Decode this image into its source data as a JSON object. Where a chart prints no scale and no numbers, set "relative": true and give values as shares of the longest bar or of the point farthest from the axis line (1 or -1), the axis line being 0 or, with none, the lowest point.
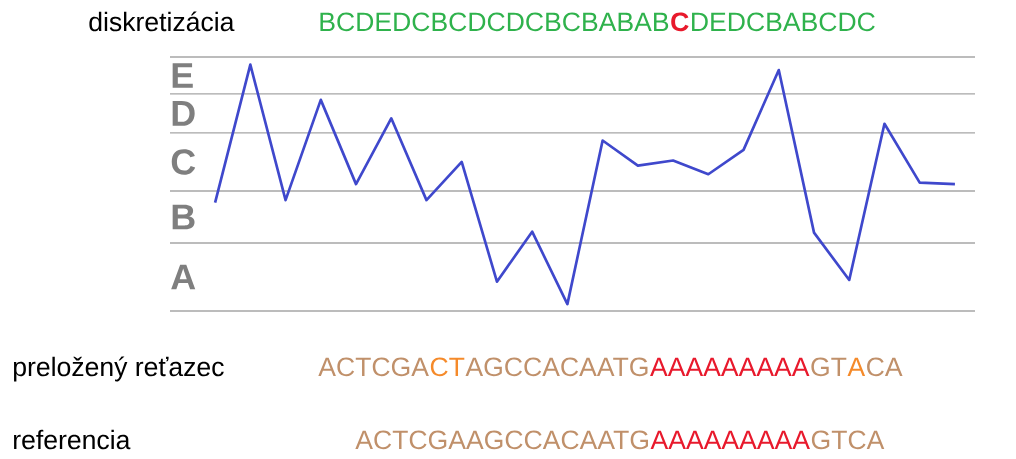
{
  "chart_data": {
    "type": "line",
    "relative": true,
    "color": "#3f48cc",
    "categories": [
      null,
      null,
      null,
      null,
      null,
      null,
      null,
      null,
      null,
      null,
      null,
      null,
      null,
      null,
      null,
      null,
      null,
      null,
      null,
      null,
      null,
      null
    ],
    "values": [
      0.44,
      1,
      0.45,
      0.857,
      0.515,
      0.782,
      0.45,
      0.605,
      0.119,
      0.322,
      0.028,
      0.692,
      0.59,
      0.611,
      0.555,
      0.654,
      0.978,
      0.318,
      0.126,
      0.76,
      0.521,
      0.515
    ],
    "ref_lines": [
      {
        "axis": "y",
        "value": 0,
        "color": "#a6a6a6"
      },
      {
        "axis": "y",
        "value": 0.276,
        "color": "#a6a6a6"
      },
      {
        "axis": "y",
        "value": 0.487,
        "color": "#a6a6a6"
      },
      {
        "axis": "y",
        "value": 0.723,
        "color": "#a6a6a6"
      },
      {
        "axis": "y",
        "value": 0.881,
        "color": "#a6a6a6"
      },
      {
        "axis": "y",
        "value": 1.031,
        "color": "#a6a6a6"
      }
    ],
    "annotations": [
      "diskretizácia",
      "BCDEDCBCDCDCBCBABAB",
      "C",
      "DEDCBABCDC",
      "preložený reťazec",
      "ACTCGA",
      "CT",
      "AGCCACAATG",
      "AAAAAAAAA",
      "GT",
      "A",
      "CA",
      "referencia",
      "ACTCGAAGCCACAATG",
      "AAAAAAAAA",
      "GTCA",
      "A",
      "B",
      "C",
      "D",
      "E"
    ]
  }
}
